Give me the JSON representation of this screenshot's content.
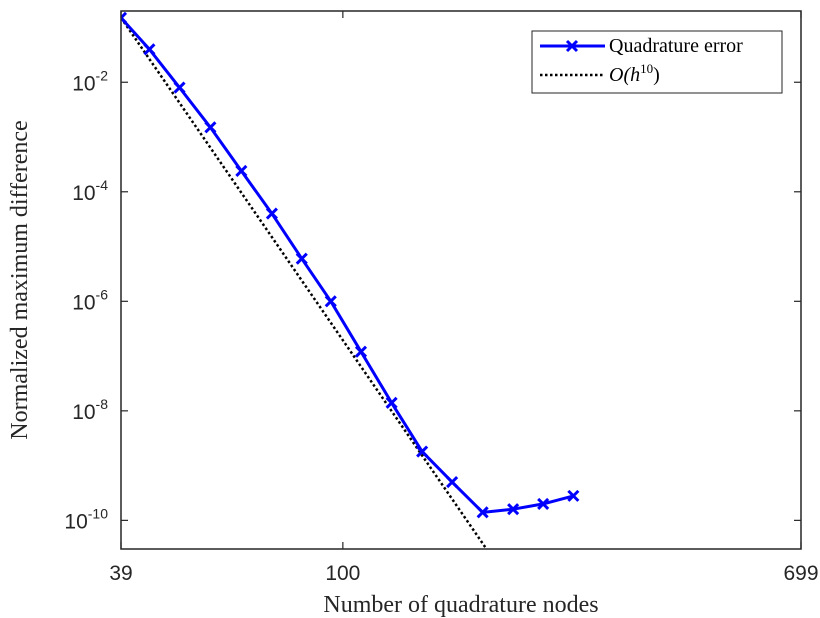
{
  "chart_data": {
    "type": "line",
    "xlabel": "Number of quadrature nodes",
    "ylabel": "Normalized maximum difference",
    "x_scale": "log",
    "y_scale": "log",
    "xlim": [
      39,
      699
    ],
    "ylim": [
      3e-11,
      0.2
    ],
    "xticks": [
      {
        "value": 39,
        "label": "39"
      },
      {
        "value": 100,
        "label": "100"
      },
      {
        "value": 699,
        "label": "699"
      }
    ],
    "yticks": [
      {
        "value": 0.01,
        "base": "10",
        "exp": "-2"
      },
      {
        "value": 0.0001,
        "base": "10",
        "exp": "-4"
      },
      {
        "value": 1e-06,
        "base": "10",
        "exp": "-6"
      },
      {
        "value": 1e-08,
        "base": "10",
        "exp": "-8"
      },
      {
        "value": 1e-10,
        "base": "10",
        "exp": "-10"
      }
    ],
    "grid": false,
    "legend_position": "top-right",
    "series": [
      {
        "name": "Quadrature error",
        "color": "#0000ff",
        "style": "solid",
        "marker": "x",
        "points": [
          [
            39,
            0.15
          ],
          [
            44,
            0.04
          ],
          [
            50,
            0.008
          ],
          [
            57,
            0.0015
          ],
          [
            65,
            0.00024
          ],
          [
            74,
            4e-05
          ],
          [
            84,
            6e-06
          ],
          [
            95,
            1e-06
          ],
          [
            108,
            1.2e-07
          ],
          [
            123,
            1.4e-08
          ],
          [
            140,
            1.8e-09
          ],
          [
            159,
            5e-10
          ],
          [
            181,
            1.4e-10
          ],
          [
            206,
            1.6e-10
          ],
          [
            234,
            2e-10
          ],
          [
            266,
            2.8e-10
          ]
        ]
      },
      {
        "name": "O(h^10)",
        "legend_label_main": "O(h",
        "legend_label_sup": "10",
        "legend_label_end": ")",
        "color": "#000000",
        "style": "dotted",
        "marker": "none",
        "points": [
          [
            39,
            0.15
          ],
          [
            184,
            3e-11
          ]
        ]
      }
    ]
  }
}
